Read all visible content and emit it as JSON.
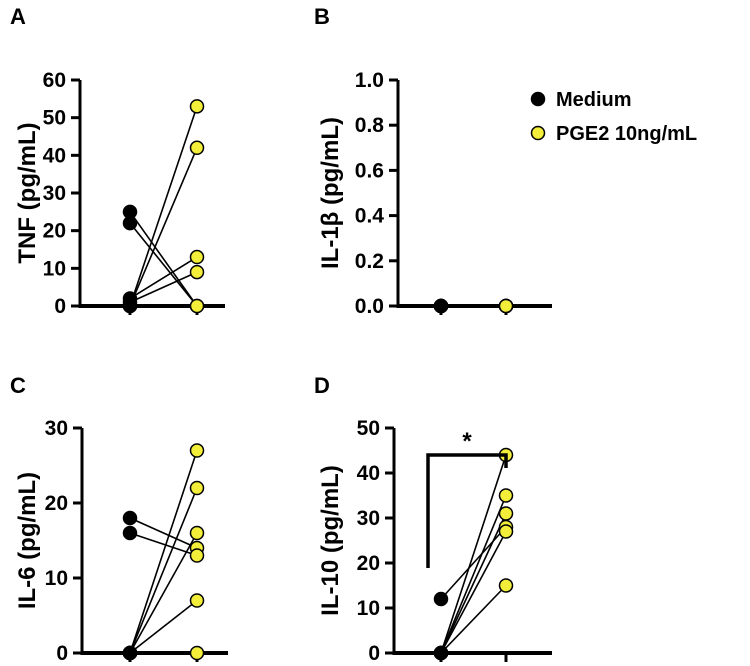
{
  "legend": {
    "medium_label": "Medium",
    "pge2_label": "PGE2 10ng/mL",
    "medium_color": "#000000",
    "pge2_color": "#f2ee3a"
  },
  "chart_data": [
    {
      "type": "scatter",
      "panel": "A",
      "ylabel": "TNF (pg/mL)",
      "categories": [
        "Medium",
        "PGE2 10ng/mL"
      ],
      "ylim": [
        0,
        60
      ],
      "yticks": [
        0,
        10,
        20,
        30,
        40,
        50,
        60
      ],
      "tick_labels": [
        "0",
        "10",
        "20",
        "30",
        "40",
        "50",
        "60"
      ],
      "pairs": [
        [
          25,
          0
        ],
        [
          22,
          0
        ],
        [
          2,
          13
        ],
        [
          1,
          9
        ],
        [
          0,
          53
        ],
        [
          0,
          42
        ]
      ]
    },
    {
      "type": "scatter",
      "panel": "B",
      "ylabel": "IL-1β (pg/mL)",
      "categories": [
        "Medium",
        "PGE2 10ng/mL"
      ],
      "ylim": [
        0,
        1
      ],
      "yticks": [
        0,
        0.2,
        0.4,
        0.6,
        0.8,
        1.0
      ],
      "tick_labels": [
        "0.0",
        "0.2",
        "0.4",
        "0.6",
        "0.8",
        "1.0"
      ],
      "pairs": [
        [
          0,
          0
        ],
        [
          0,
          0
        ],
        [
          0,
          0
        ],
        [
          0,
          0
        ],
        [
          0,
          0
        ],
        [
          0,
          0
        ]
      ]
    },
    {
      "type": "scatter",
      "panel": "C",
      "ylabel": "IL-6 (pg/mL)",
      "categories": [
        "Medium",
        "PGE2 10ng/mL"
      ],
      "ylim": [
        0,
        30
      ],
      "yticks": [
        0,
        10,
        20,
        30
      ],
      "tick_labels": [
        "0",
        "10",
        "20",
        "30"
      ],
      "pairs": [
        [
          18,
          14
        ],
        [
          16,
          13
        ],
        [
          0,
          27
        ],
        [
          0,
          22
        ],
        [
          0,
          16
        ],
        [
          0,
          7
        ],
        [
          0,
          0
        ]
      ]
    },
    {
      "type": "scatter",
      "panel": "D",
      "ylabel": "IL-10 (pg/mL)",
      "categories": [
        "Medium",
        "PGE2 10ng/mL"
      ],
      "ylim": [
        0,
        50
      ],
      "yticks": [
        0,
        10,
        20,
        30,
        40,
        50
      ],
      "tick_labels": [
        "0",
        "10",
        "20",
        "30",
        "40",
        "50"
      ],
      "pairs": [
        [
          12,
          28
        ],
        [
          0,
          44
        ],
        [
          0,
          35
        ],
        [
          0,
          31
        ],
        [
          0,
          27
        ],
        [
          0,
          15
        ]
      ],
      "significance": "*"
    }
  ]
}
